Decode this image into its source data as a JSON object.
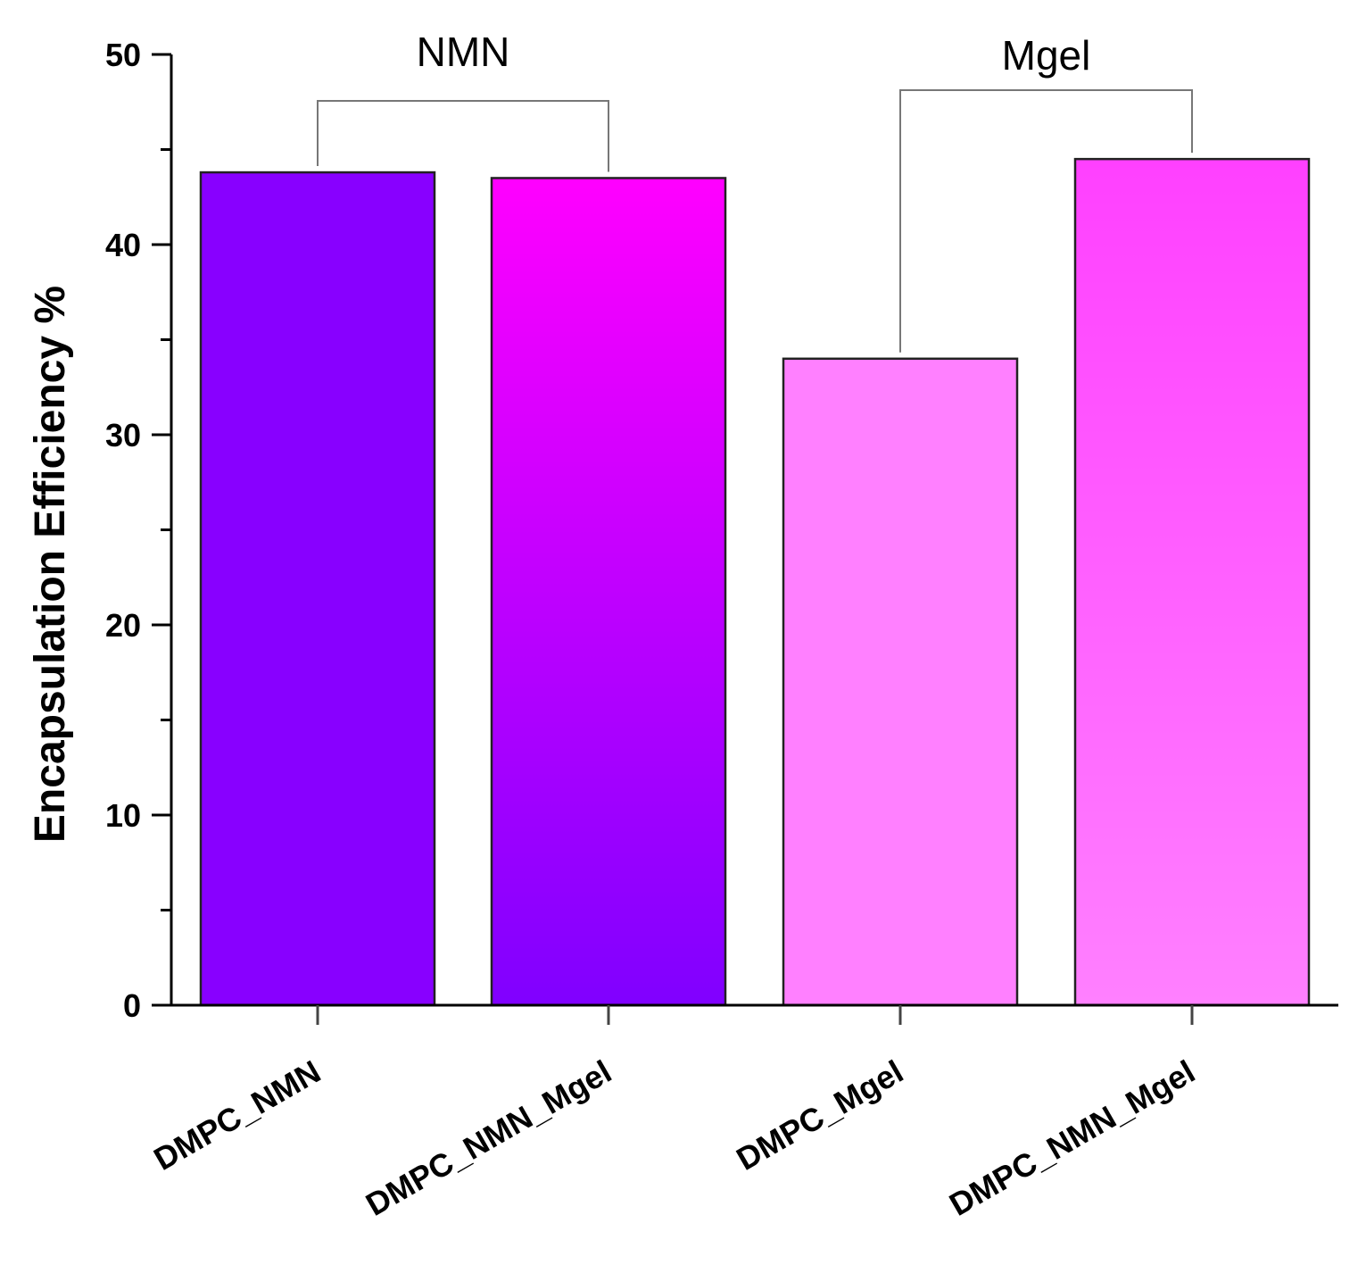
{
  "chart_data": {
    "type": "bar",
    "title": "",
    "xlabel": "",
    "ylabel": "Encapsulation Efficiency %",
    "ylim": [
      0,
      50
    ],
    "yticks": [
      "0",
      "10",
      "20",
      "30",
      "40",
      "50"
    ],
    "categories": [
      "DMPC_NMN",
      "DMPC_NMN_Mgel",
      "DMPC_Mgel",
      "DMPC_NMN_Mgel"
    ],
    "values": [
      43.8,
      43.5,
      34.0,
      44.5
    ],
    "bar_colors": [
      [
        "#8800ff",
        "#8800ff"
      ],
      [
        "#ff00ff",
        "#8000ff"
      ],
      [
        "#ff80ff",
        "#ff80ff"
      ],
      [
        "#ff40ff",
        "#ff80ff"
      ]
    ],
    "brackets": [
      {
        "label": "NMN",
        "from_index": 0,
        "to_index": 1
      },
      {
        "label": "Mgel",
        "from_index": 2,
        "to_index": 3
      }
    ],
    "grid": false,
    "legend": "none"
  }
}
